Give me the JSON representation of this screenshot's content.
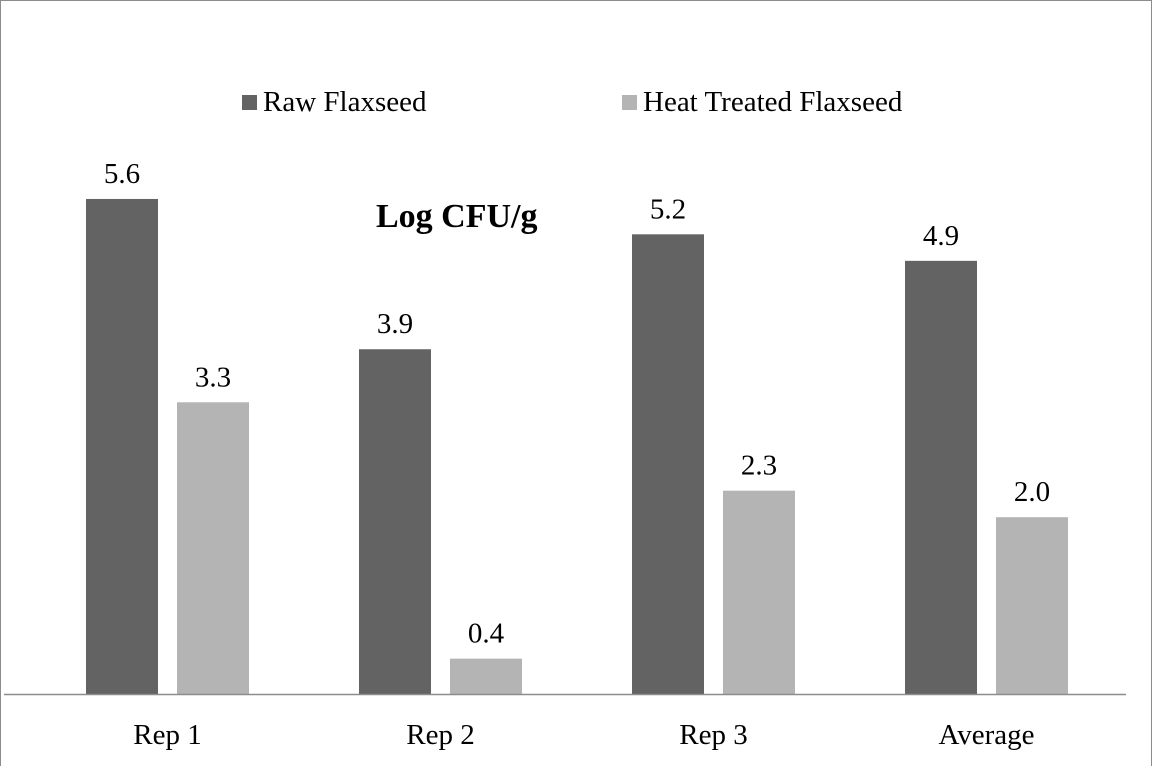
{
  "chart_data": {
    "type": "bar",
    "title": "Log CFU/g",
    "xlabel": "",
    "ylabel": "",
    "categories": [
      "Rep 1",
      "Rep 2",
      "Rep 3",
      "Average"
    ],
    "series": [
      {
        "name": "Raw Flaxseed",
        "values": [
          5.6,
          3.9,
          5.2,
          4.9
        ],
        "color": "#636363",
        "labels": [
          "5.6",
          "3.9",
          "5.2",
          "4.9"
        ]
      },
      {
        "name": "Heat Treated Flaxseed",
        "values": [
          3.3,
          0.4,
          2.3,
          2.0
        ],
        "color": "#b4b4b4",
        "labels": [
          "3.3",
          "0.4",
          "2.3",
          "2.0"
        ]
      }
    ],
    "ylim": [
      0,
      6.5
    ],
    "grid": false,
    "legend_position": "top"
  }
}
